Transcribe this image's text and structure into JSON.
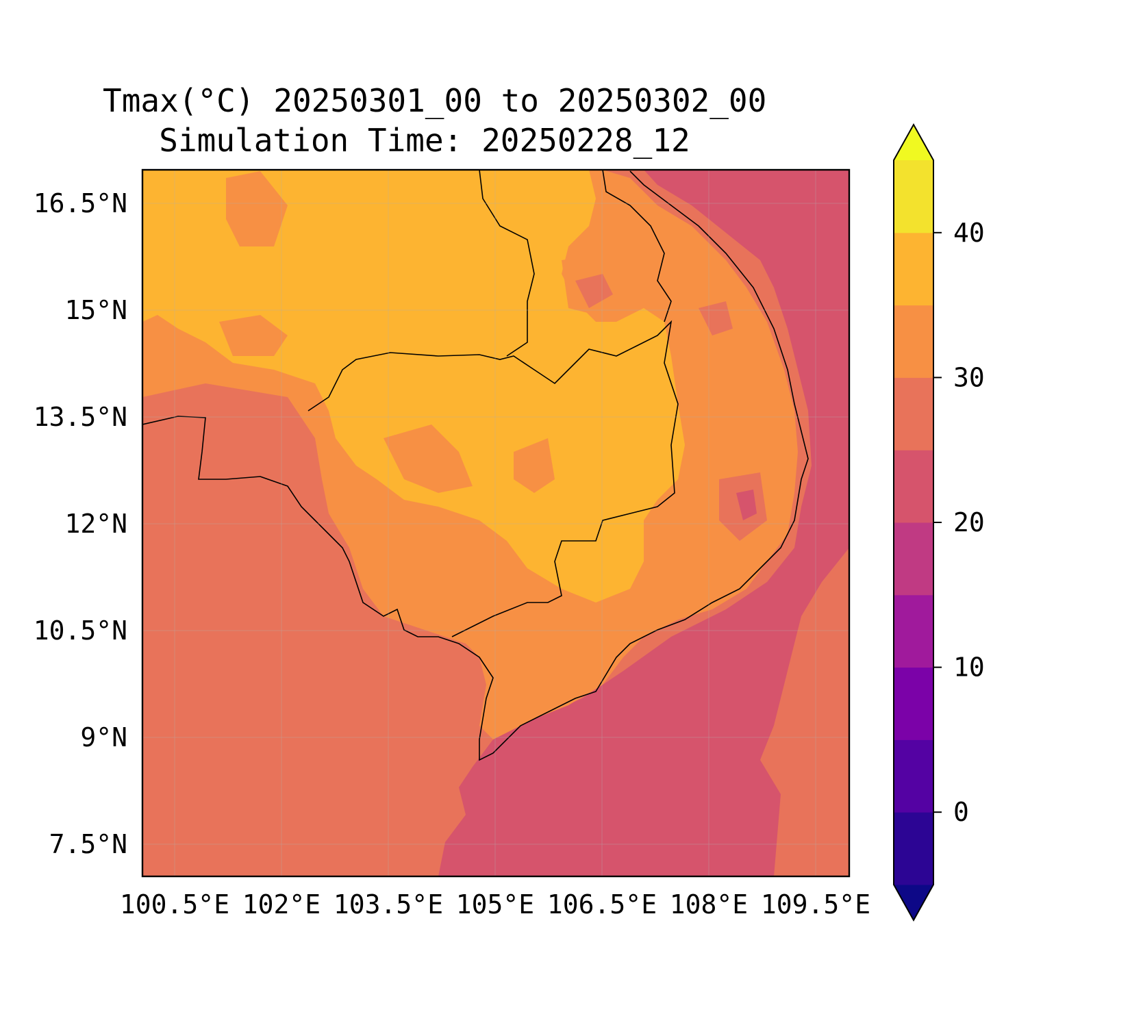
{
  "title": {
    "line1": "Tmax(°C) 20250301_00 to 20250302_00",
    "line2": "Simulation Time: 20250228_12"
  },
  "map": {
    "variable": "Tmax",
    "unit": "°C",
    "region": "Cambodia, southern Vietnam, eastern Thailand and Laos",
    "lat_labels": [
      "16.5°N",
      "15°N",
      "13.5°N",
      "12°N",
      "10.5°N",
      "9°N",
      "7.5°N"
    ],
    "lon_labels": [
      "100.5°E",
      "102°E",
      "103.5°E",
      "105°E",
      "106.5°E",
      "108°E",
      "109.5°E"
    ],
    "lat_range": [
      7.1,
      17.0
    ],
    "lon_range": [
      100.5,
      110.4
    ]
  },
  "colorbar": {
    "tick_labels": [
      "0",
      "10",
      "20",
      "30",
      "40"
    ],
    "levels": [
      -5,
      0,
      5,
      10,
      15,
      20,
      25,
      30,
      35,
      40,
      45
    ],
    "colors": [
      "#0d0887",
      "#2c0594",
      "#5402a3",
      "#7b02a8",
      "#a01a9c",
      "#c03a83",
      "#d6546c",
      "#e8735a",
      "#f79044",
      "#fdb431",
      "#f3e22d",
      "#f0f921"
    ],
    "extend": "both"
  }
}
